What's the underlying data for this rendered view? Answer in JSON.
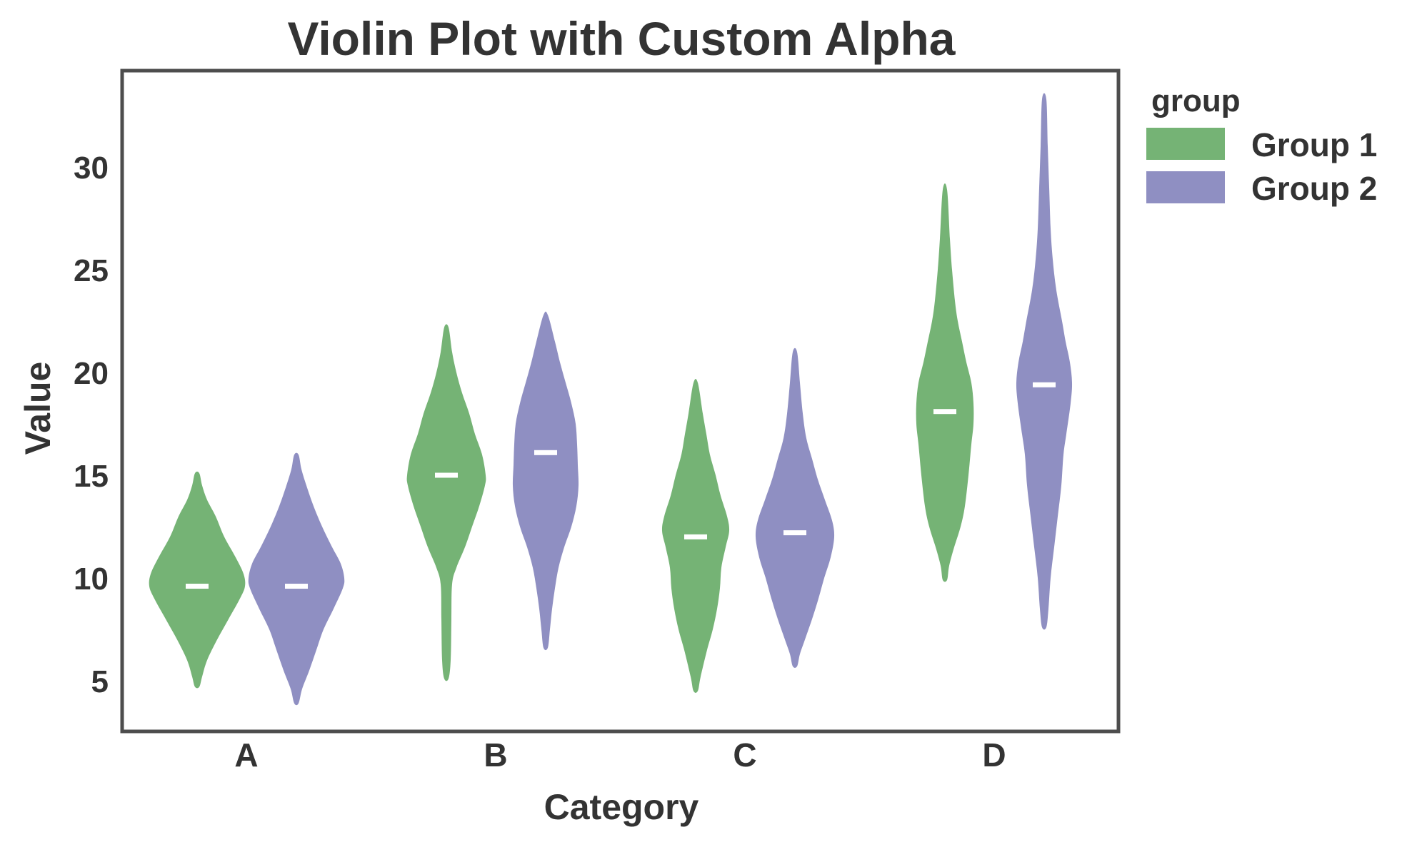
{
  "chart_data": {
    "type": "violin",
    "title": "Violin Plot with Custom Alpha",
    "xlabel": "Category",
    "ylabel": "Value",
    "categories": [
      "A",
      "B",
      "C",
      "D"
    ],
    "yticks": [
      5,
      10,
      15,
      20,
      25,
      30
    ],
    "ylim": [
      2.5,
      34.7
    ],
    "grid": false,
    "legend": {
      "title": "group",
      "position": "outside-right-top",
      "entries": [
        {
          "label": "Group 1",
          "color": "#75b375"
        },
        {
          "label": "Group 2",
          "color": "#8f8fc2"
        }
      ]
    },
    "series": [
      {
        "name": "Group 1",
        "color": "#75b375",
        "violins": [
          {
            "category": "A",
            "min": 4.7,
            "max": 15.1,
            "median": 9.6,
            "profile": [
              [
                4.7,
                3
              ],
              [
                5.2,
                7
              ],
              [
                6.0,
                14
              ],
              [
                7.0,
                28
              ],
              [
                8.0,
                44
              ],
              [
                9.0,
                60
              ],
              [
                9.6,
                67
              ],
              [
                10.2,
                65
              ],
              [
                11.0,
                54
              ],
              [
                12.0,
                38
              ],
              [
                13.0,
                26
              ],
              [
                13.8,
                14
              ],
              [
                14.5,
                7
              ],
              [
                15.1,
                3
              ]
            ]
          },
          {
            "category": "B",
            "min": 5.1,
            "max": 22.2,
            "median": 15.0,
            "profile": [
              [
                5.1,
                3
              ],
              [
                6.0,
                6
              ],
              [
                8.0,
                7
              ],
              [
                9.7,
                8
              ],
              [
                10.5,
                14
              ],
              [
                11.5,
                26
              ],
              [
                12.5,
                36
              ],
              [
                13.5,
                46
              ],
              [
                14.5,
                54
              ],
              [
                15.0,
                55
              ],
              [
                16.0,
                50
              ],
              [
                17.0,
                40
              ],
              [
                18.0,
                32
              ],
              [
                19.0,
                22
              ],
              [
                20.0,
                14
              ],
              [
                21.0,
                8
              ],
              [
                22.2,
                3
              ]
            ]
          },
          {
            "category": "C",
            "min": 4.5,
            "max": 19.5,
            "median": 12.0,
            "profile": [
              [
                4.5,
                3
              ],
              [
                5.2,
                7
              ],
              [
                6.5,
                16
              ],
              [
                7.5,
                24
              ],
              [
                8.5,
                30
              ],
              [
                9.5,
                34
              ],
              [
                10.5,
                36
              ],
              [
                11.5,
                42
              ],
              [
                12.3,
                47
              ],
              [
                13.0,
                44
              ],
              [
                14.0,
                35
              ],
              [
                15.0,
                28
              ],
              [
                16.0,
                20
              ],
              [
                17.0,
                15
              ],
              [
                18.0,
                10
              ],
              [
                19.5,
                3
              ]
            ]
          },
          {
            "category": "D",
            "min": 9.9,
            "max": 28.9,
            "median": 18.1,
            "profile": [
              [
                9.9,
                3
              ],
              [
                10.6,
                6
              ],
              [
                11.5,
                13
              ],
              [
                12.5,
                22
              ],
              [
                13.5,
                28
              ],
              [
                15.0,
                33
              ],
              [
                16.5,
                37
              ],
              [
                17.5,
                40
              ],
              [
                18.5,
                40
              ],
              [
                19.5,
                37
              ],
              [
                20.5,
                30
              ],
              [
                21.5,
                24
              ],
              [
                22.5,
                18
              ],
              [
                23.5,
                14
              ],
              [
                25.0,
                10
              ],
              [
                26.5,
                7
              ],
              [
                28.9,
                3
              ]
            ]
          }
        ]
      },
      {
        "name": "Group 2",
        "color": "#8f8fc2",
        "violins": [
          {
            "category": "A",
            "min": 3.9,
            "max": 16.0,
            "median": 9.6,
            "profile": [
              [
                3.9,
                3
              ],
              [
                4.6,
                8
              ],
              [
                5.5,
                18
              ],
              [
                6.5,
                28
              ],
              [
                7.5,
                38
              ],
              [
                8.5,
                52
              ],
              [
                9.5,
                65
              ],
              [
                10.0,
                67
              ],
              [
                10.7,
                62
              ],
              [
                11.5,
                50
              ],
              [
                12.5,
                36
              ],
              [
                13.5,
                24
              ],
              [
                14.5,
                14
              ],
              [
                15.3,
                7
              ],
              [
                16.0,
                3
              ]
            ]
          },
          {
            "category": "B",
            "min": 6.6,
            "max": 22.8,
            "median": 16.1,
            "profile": [
              [
                6.6,
                3
              ],
              [
                7.5,
                6
              ],
              [
                8.5,
                9
              ],
              [
                9.5,
                13
              ],
              [
                10.5,
                18
              ],
              [
                11.5,
                26
              ],
              [
                12.5,
                36
              ],
              [
                13.5,
                43
              ],
              [
                14.5,
                46
              ],
              [
                15.5,
                45
              ],
              [
                16.5,
                44
              ],
              [
                17.5,
                42
              ],
              [
                18.5,
                36
              ],
              [
                19.5,
                28
              ],
              [
                20.5,
                20
              ],
              [
                21.5,
                13
              ],
              [
                22.8,
                3
              ]
            ]
          },
          {
            "category": "C",
            "min": 5.7,
            "max": 21.0,
            "median": 12.2,
            "profile": [
              [
                5.7,
                3
              ],
              [
                6.3,
                7
              ],
              [
                7.0,
                14
              ],
              [
                8.0,
                24
              ],
              [
                9.0,
                33
              ],
              [
                10.0,
                41
              ],
              [
                11.0,
                50
              ],
              [
                12.0,
                55
              ],
              [
                12.8,
                52
              ],
              [
                13.8,
                42
              ],
              [
                14.8,
                32
              ],
              [
                15.8,
                24
              ],
              [
                16.8,
                16
              ],
              [
                18.0,
                11
              ],
              [
                19.5,
                7
              ],
              [
                21.0,
                3
              ]
            ]
          },
          {
            "category": "D",
            "min": 7.6,
            "max": 33.3,
            "median": 19.4,
            "profile": [
              [
                7.6,
                3
              ],
              [
                8.5,
                6
              ],
              [
                10.0,
                9
              ],
              [
                11.5,
                14
              ],
              [
                13.0,
                19
              ],
              [
                14.5,
                24
              ],
              [
                16.0,
                27
              ],
              [
                17.0,
                31
              ],
              [
                18.5,
                37
              ],
              [
                19.5,
                39
              ],
              [
                20.5,
                36
              ],
              [
                21.5,
                30
              ],
              [
                22.5,
                25
              ],
              [
                24.0,
                17
              ],
              [
                25.5,
                12
              ],
              [
                27.0,
                9
              ],
              [
                29.0,
                7
              ],
              [
                31.0,
                5
              ],
              [
                33.3,
                3
              ]
            ]
          }
        ]
      }
    ]
  }
}
